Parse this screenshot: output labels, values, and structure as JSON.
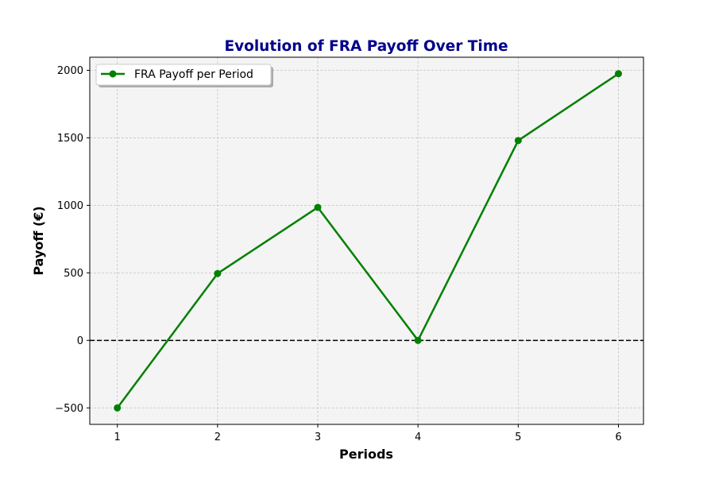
{
  "chart_data": {
    "type": "line",
    "title": "Evolution of FRA Payoff Over Time",
    "xlabel": "Periods",
    "ylabel": "Payoff (€)",
    "x": [
      1,
      2,
      3,
      4,
      5,
      6
    ],
    "series": [
      {
        "name": "FRA Payoff per Period",
        "values": [
          -500,
          495,
          985,
          0,
          1480,
          1975
        ],
        "color": "#008000",
        "marker": "circle"
      }
    ],
    "xticks": [
      1,
      2,
      3,
      4,
      5,
      6
    ],
    "xtick_labels": [
      "1",
      "2",
      "3",
      "4",
      "5",
      "6"
    ],
    "yticks": [
      -500,
      0,
      500,
      1000,
      1500,
      2000
    ],
    "ytick_labels": [
      "−500",
      "0",
      "500",
      "1000",
      "1500",
      "2000"
    ],
    "xlim": [
      0.725,
      6.25
    ],
    "ylim": [
      -622,
      2097
    ],
    "reference_line": {
      "y": 0,
      "style": "dashed",
      "color": "#000000"
    },
    "grid": true,
    "legend_position": "upper left",
    "title_color": "#00008b",
    "plot_background": "#f4f4f4"
  }
}
